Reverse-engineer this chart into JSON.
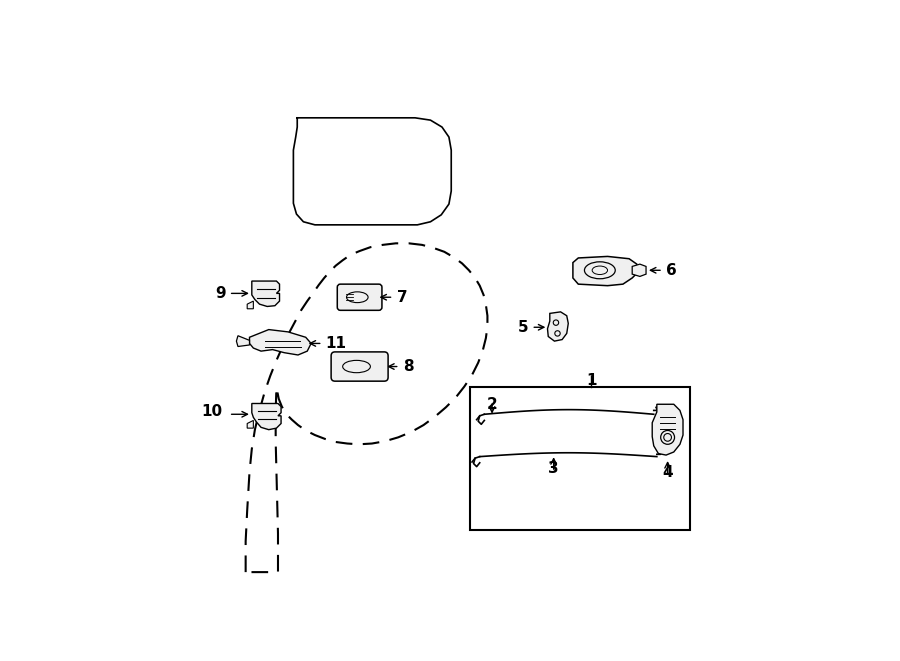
{
  "bg_color": "#ffffff",
  "line_color": "#000000",
  "parts_labels": [
    "1",
    "2",
    "3",
    "4",
    "5",
    "6",
    "7",
    "8",
    "9",
    "10",
    "11"
  ]
}
